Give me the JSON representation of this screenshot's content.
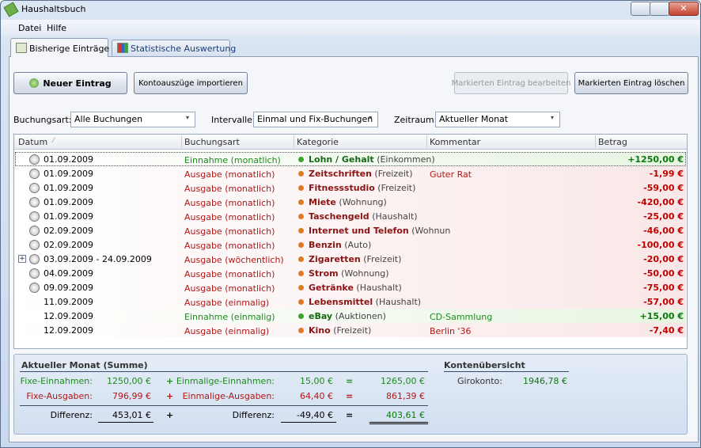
{
  "window": {
    "title": "Haushaltsbuch"
  },
  "menu": [
    "Datei",
    "Hilfe"
  ],
  "tabs": [
    {
      "label": "Bisherige Einträge",
      "active": true
    },
    {
      "label": "Statistische Auswertung"
    }
  ],
  "buttons": [
    {
      "label": "Neuer Eintrag"
    },
    {
      "label": "Kontoauszüge importieren"
    },
    {
      "label": "Markierten Eintrag bearbeiten",
      "disabled": true
    },
    {
      "label": "Markierten Eintrag löschen"
    }
  ],
  "filters": [
    {
      "label": "Buchungsart:",
      "value": "Alle Buchungen"
    },
    {
      "label": "Intervalle:",
      "value": "Einmal und Fix-Buchungen"
    },
    {
      "label": "Zeitraum:",
      "value": "Aktueller Monat"
    }
  ],
  "table": {
    "columns": [
      "Datum",
      "Buchungsart",
      "Kategorie",
      "Kommentar",
      "Betrag"
    ],
    "rows": [
      {
        "kind": "income",
        "date": "01.09.2009",
        "type": "Einnahme (monatlich)",
        "category": "Lohn / Gehalt",
        "group": "(Einkommen)",
        "amount": "+1250,00 €"
      },
      {
        "kind": "expense",
        "date": "01.09.2009",
        "type": "Ausgabe (monatlich)",
        "category": "Zeitschriften",
        "group": "(Freizeit)",
        "comment": "Guter Rat",
        "amount": "-1,99 €"
      },
      {
        "kind": "expense",
        "date": "01.09.2009",
        "type": "Ausgabe (monatlich)",
        "category": "Fitnessstudio",
        "group": "(Freizeit)",
        "amount": "-59,00 €"
      },
      {
        "kind": "expense",
        "date": "01.09.2009",
        "type": "Ausgabe (monatlich)",
        "category": "Miete",
        "group": "(Wohnung)",
        "amount": "-420,00 €"
      },
      {
        "kind": "expense",
        "date": "01.09.2009",
        "type": "Ausgabe (monatlich)",
        "category": "Taschengeld",
        "group": "(Haushalt)",
        "amount": "-25,00 €"
      },
      {
        "kind": "expense",
        "date": "02.09.2009",
        "type": "Ausgabe (monatlich)",
        "category": "Internet und Telefon",
        "group": "(Wohnun",
        "amount": "-46,00 €"
      },
      {
        "kind": "expense",
        "date": "02.09.2009",
        "type": "Ausgabe (monatlich)",
        "category": "Benzin",
        "group": "(Auto)",
        "amount": "-100,00 €"
      },
      {
        "kind": "expense",
        "expandable": true,
        "date": "03.09.2009 - 24.09.2009",
        "type": "Ausgabe (wöchentlich)",
        "category": "Zigaretten",
        "group": "(Freizeit)",
        "amount": "-20,00 €"
      },
      {
        "kind": "expense",
        "date": "04.09.2009",
        "type": "Ausgabe (monatlich)",
        "category": "Strom",
        "group": "(Wohnung)",
        "amount": "-50,00 €"
      },
      {
        "kind": "expense",
        "date": "09.09.2009",
        "type": "Ausgabe (monatlich)",
        "category": "Getränke",
        "group": "(Haushalt)",
        "amount": "-75,00 €"
      },
      {
        "kind": "expense",
        "once": true,
        "date": "11.09.2009",
        "type": "Ausgabe (einmalig)",
        "category": "Lebensmittel",
        "group": "(Haushalt)",
        "amount": "-57,00 €"
      },
      {
        "kind": "income",
        "once": true,
        "date": "12.09.2009",
        "type": "Einnahme (einmalig)",
        "category": "eBay",
        "group": "(Auktionen)",
        "comment": "CD-Sammlung",
        "amount": "+15,00 €"
      },
      {
        "kind": "expense",
        "once": true,
        "date": "12.09.2009",
        "type": "Ausgabe (einmalig)",
        "category": "Kino",
        "group": "(Freizeit)",
        "comment": "Berlin '36",
        "amount": "-7,40 €"
      }
    ]
  },
  "summary": {
    "title": "Aktueller Monat (Summe)",
    "rows": [
      {
        "kind": "income",
        "label1": "Fixe-Einnahmen:",
        "value1": "1250,00 €",
        "op1": "+",
        "label2": "Einmalige-Einnahmen:",
        "value2": "15,00 €",
        "op2": "=",
        "total": "1265,00 €"
      },
      {
        "kind": "expense",
        "label1": "Fixe-Ausgaben:",
        "value1": "796,99 €",
        "op1": "+",
        "label2": "Einmalige-Ausgaben:",
        "value2": "64,40 €",
        "op2": "=",
        "total": "861,39 €"
      },
      {
        "kind": "total",
        "label1": "Differenz:",
        "value1": "453,01 €",
        "op1": "+",
        "label2": "Differenz:",
        "value2": "-49,40 €",
        "op2": "=",
        "total": "403,61 €"
      }
    ]
  },
  "accounts": {
    "title": "Kontenübersicht",
    "rows": [
      {
        "label": "Girokonto:",
        "value": "1946,78 €"
      }
    ]
  }
}
